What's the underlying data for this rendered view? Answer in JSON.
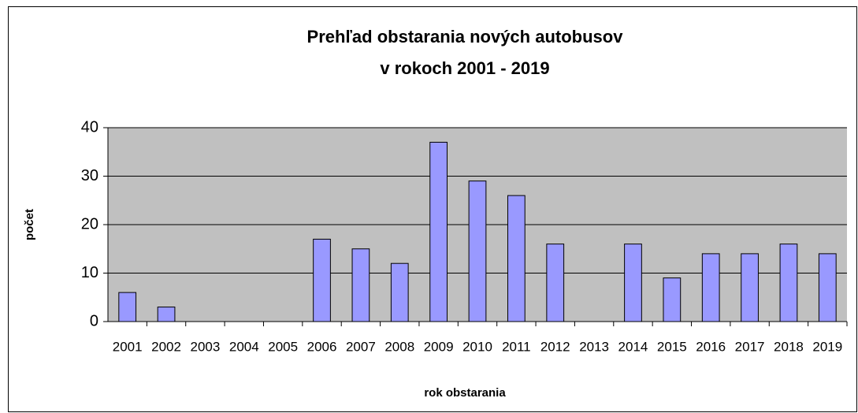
{
  "chart_data": {
    "type": "bar",
    "title": [
      "Prehľad obstarania nových autobusov",
      "v rokoch 2001 - 2019"
    ],
    "x_label": "rok obstarania",
    "y_label": "počet",
    "categories": [
      "2001",
      "2002",
      "2003",
      "2004",
      "2005",
      "2006",
      "2007",
      "2008",
      "2009",
      "2010",
      "2011",
      "2012",
      "2013",
      "2014",
      "2015",
      "2016",
      "2017",
      "2018",
      "2019"
    ],
    "values": [
      6,
      3,
      0,
      0,
      0,
      17,
      15,
      12,
      37,
      29,
      26,
      16,
      0,
      16,
      9,
      14,
      14,
      16,
      14
    ],
    "color": "#9999ff",
    "ylim": [
      0,
      40
    ],
    "yticks": [
      0,
      10,
      20,
      30,
      40
    ],
    "grid": true
  }
}
